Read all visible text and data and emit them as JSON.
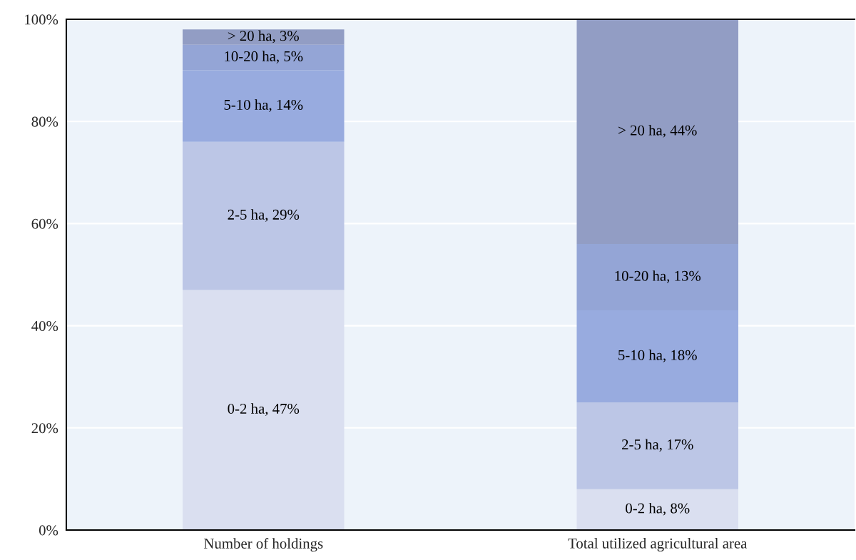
{
  "chart_data": {
    "type": "bar",
    "stacked": true,
    "categories": [
      "Number of holdings",
      "Total utilized agricultural area"
    ],
    "series": [
      {
        "color": "#dadff0",
        "values": [
          47,
          8
        ],
        "value_labels": [
          "0-2 ha, 47%",
          "0-2 ha, 8%"
        ]
      },
      {
        "color": "#bcc6e6",
        "values": [
          29,
          17
        ],
        "value_labels": [
          "2-5 ha, 29%",
          "2-5 ha, 17%"
        ]
      },
      {
        "color": "#98abdf",
        "values": [
          14,
          18
        ],
        "value_labels": [
          "5-10 ha, 14%",
          "5-10 ha, 18%"
        ]
      },
      {
        "color": "#94a5d6",
        "values": [
          5,
          13
        ],
        "value_labels": [
          "10-20 ha, 5%",
          "10-20 ha, 13%"
        ]
      },
      {
        "color": "#929dc4",
        "values": [
          3,
          44
        ],
        "value_labels": [
          "> 20 ha, 3%",
          "> 20 ha, 44%"
        ]
      }
    ],
    "ylim": [
      0,
      100
    ],
    "yticks": [
      {
        "value": 0,
        "label": "0%"
      },
      {
        "value": 20,
        "label": "20%"
      },
      {
        "value": 40,
        "label": "40%"
      },
      {
        "value": 60,
        "label": "60%"
      },
      {
        "value": 80,
        "label": "80%"
      },
      {
        "value": 100,
        "label": "100%"
      }
    ],
    "grid": "y"
  }
}
